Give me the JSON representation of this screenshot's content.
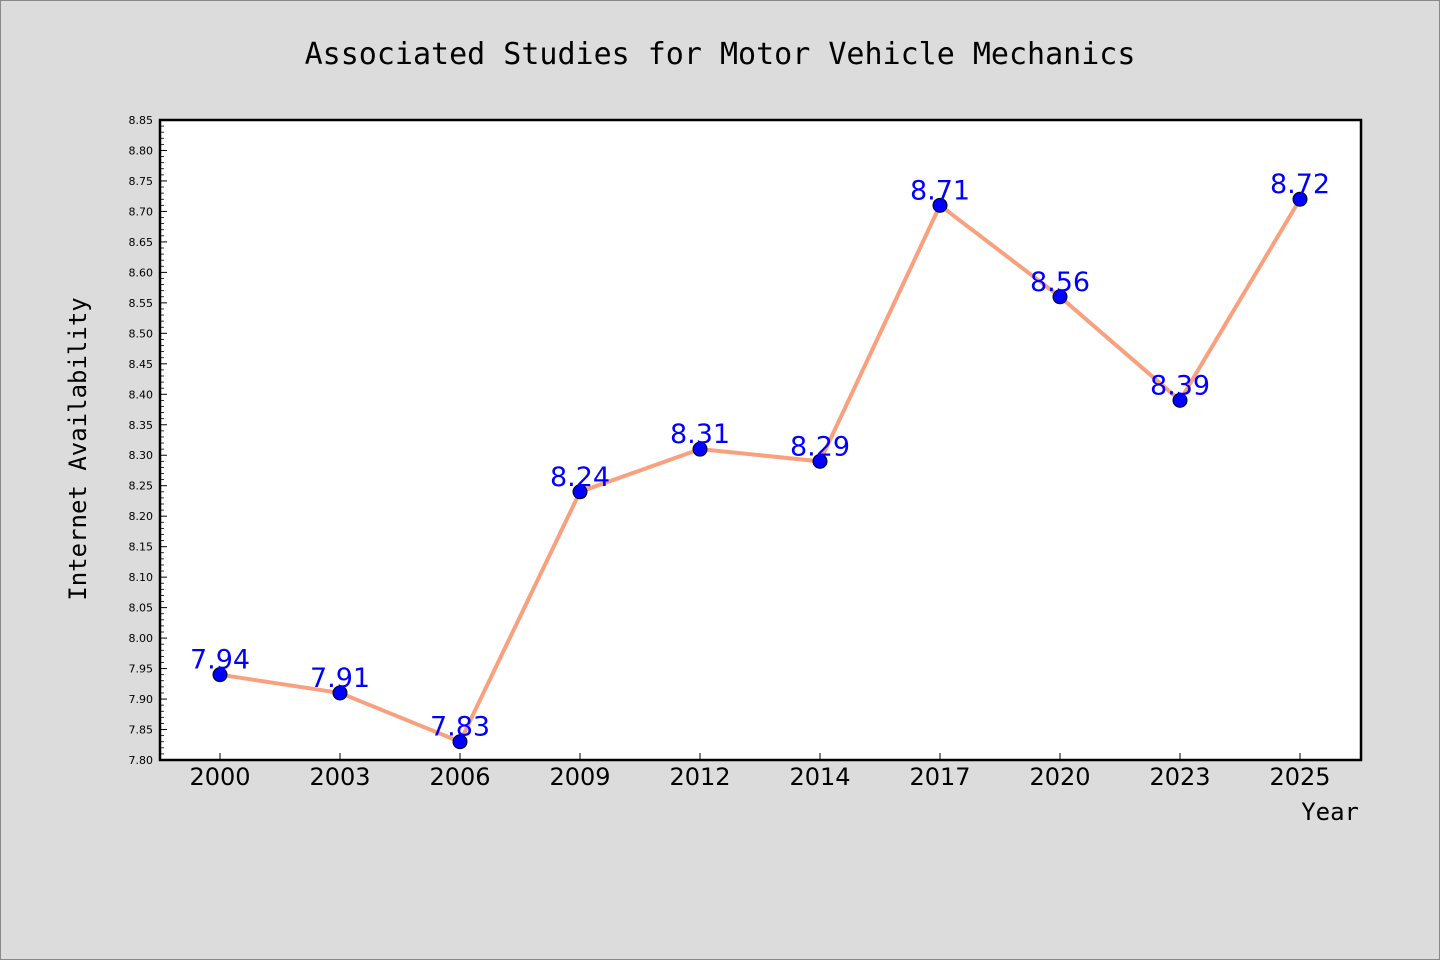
{
  "chart_data": {
    "type": "line",
    "title": "Associated Studies for Motor Vehicle Mechanics",
    "xlabel": "Year",
    "ylabel": "Internet Availability",
    "categories": [
      "2000",
      "2003",
      "2006",
      "2009",
      "2012",
      "2014",
      "2017",
      "2020",
      "2023",
      "2025"
    ],
    "series": [
      {
        "values": [
          7.94,
          7.91,
          7.83,
          8.24,
          8.31,
          8.29,
          8.71,
          8.56,
          8.39,
          8.72
        ],
        "labels": [
          "7.94",
          "7.91",
          "7.83",
          "8.24",
          "8.31",
          "8.29",
          "8.71",
          "8.56",
          "8.39",
          "8.72"
        ]
      }
    ],
    "ylim": [
      7.8,
      8.85
    ],
    "yticks": [
      "7.80",
      "7.85",
      "7.90",
      "7.95",
      "8.00",
      "8.05",
      "8.10",
      "8.15",
      "8.20",
      "8.25",
      "8.30",
      "8.35",
      "8.40",
      "8.45",
      "8.50",
      "8.55",
      "8.60",
      "8.65",
      "8.70",
      "8.75",
      "8.80",
      "8.85"
    ],
    "grid": false,
    "legend": "none",
    "colors": {
      "line": "#f9a07f",
      "marker": "#0000ff",
      "label": "#0000ff",
      "plot_background": "#ffffff",
      "figure_background": "#dcdcdc"
    }
  }
}
